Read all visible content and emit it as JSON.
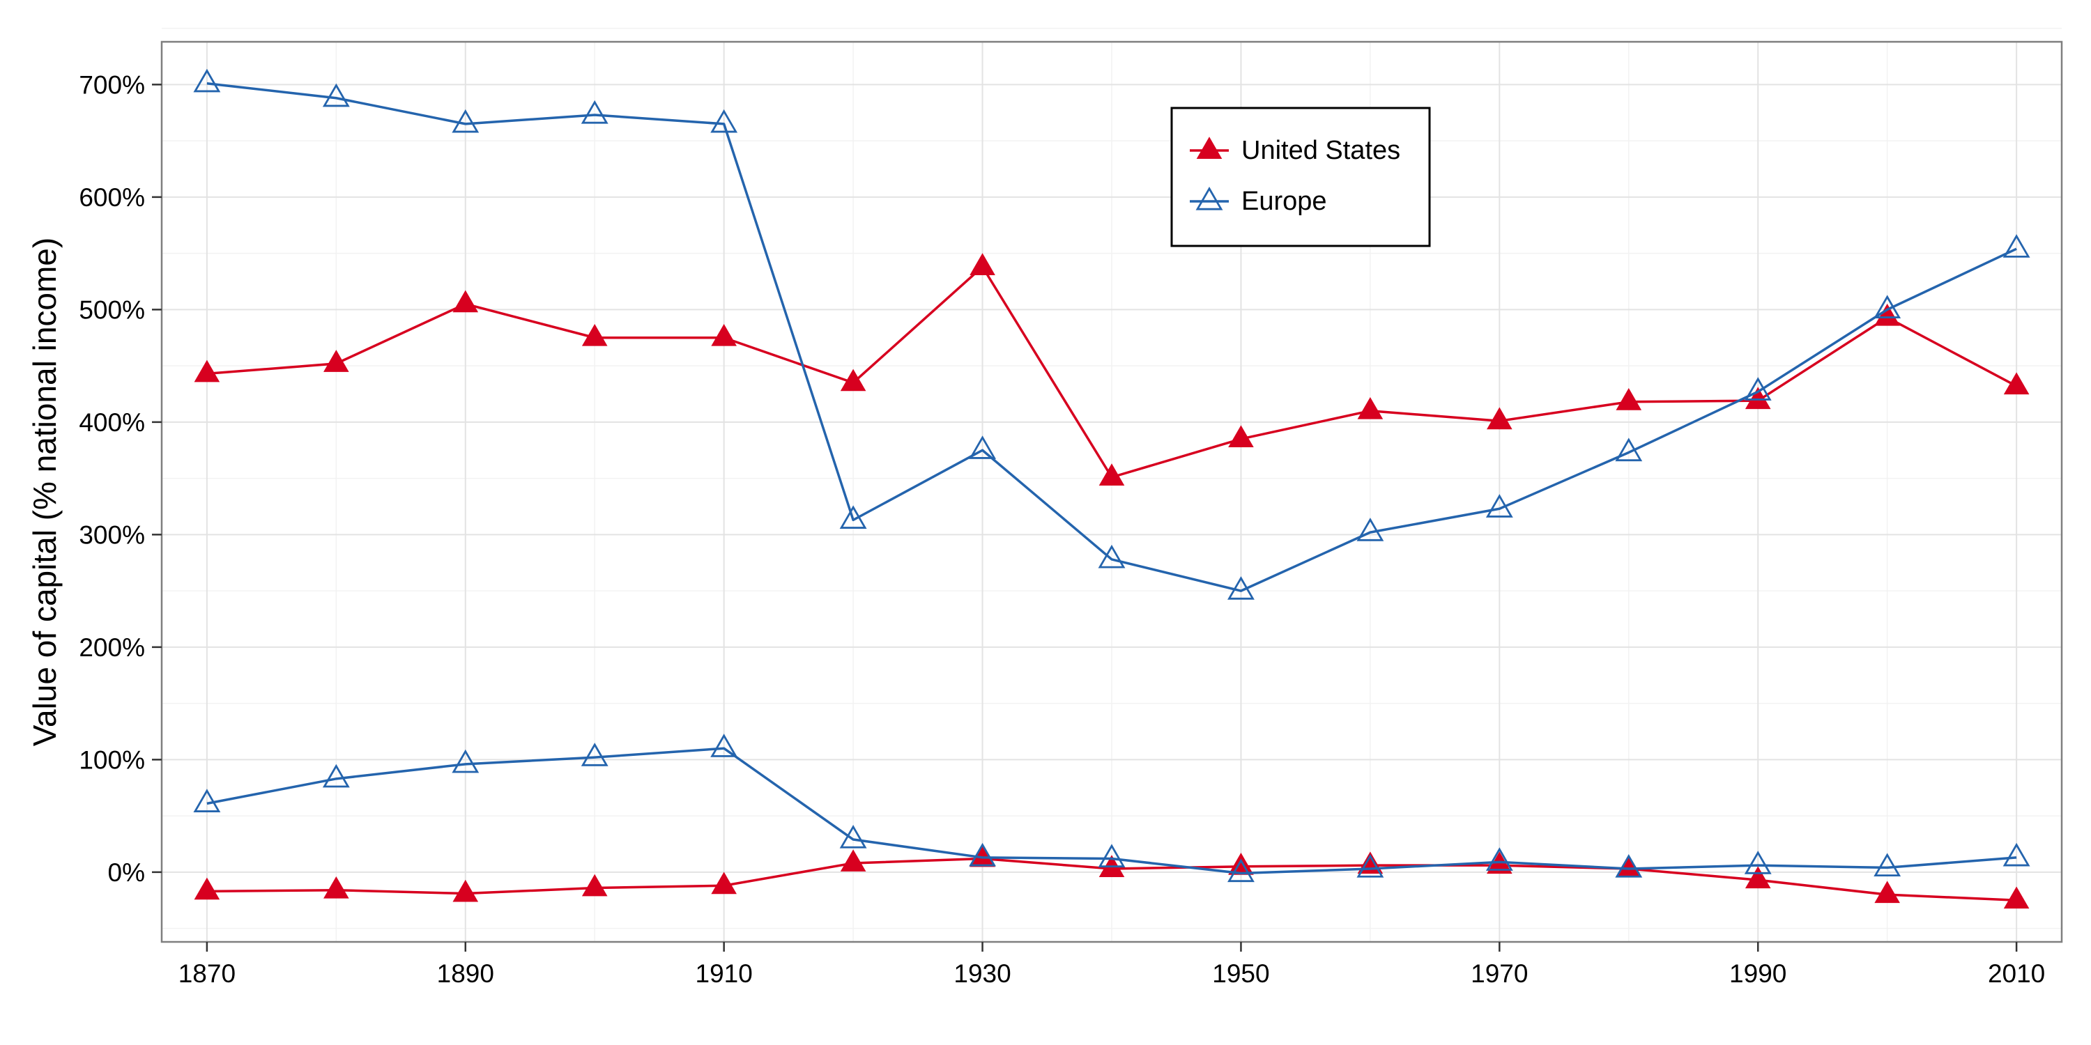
{
  "chart_data": {
    "type": "line",
    "title": "",
    "xlabel": "",
    "ylabel": "Value of capital (% national income)",
    "x": [
      1870,
      1880,
      1890,
      1900,
      1910,
      1920,
      1930,
      1940,
      1950,
      1960,
      1970,
      1980,
      1990,
      2000,
      2010
    ],
    "x_ticks": [
      1870,
      1890,
      1910,
      1930,
      1950,
      1970,
      1990,
      2010
    ],
    "y_ticks": [
      0,
      100,
      200,
      300,
      400,
      500,
      600,
      700
    ],
    "y_tick_labels": [
      "0%",
      "100%",
      "200%",
      "300%",
      "400%",
      "500%",
      "600%",
      "700%"
    ],
    "xlim": [
      1866.5,
      2013.5
    ],
    "ylim": [
      -62,
      738
    ],
    "grid": true,
    "legend_position": "top-center",
    "series": [
      {
        "name": "United States",
        "group": "upper",
        "color": "#d7001f",
        "marker": "filled-triangle",
        "values": [
          443,
          452,
          505,
          475,
          475,
          435,
          538,
          351,
          385,
          410,
          401,
          418,
          419,
          493,
          432
        ]
      },
      {
        "name": "United States",
        "group": "lower",
        "color": "#d7001f",
        "marker": "filled-triangle",
        "values": [
          -17,
          -16,
          -19,
          -14,
          -12,
          8,
          12,
          3,
          5,
          6,
          6,
          3,
          -7,
          -20,
          -25
        ]
      },
      {
        "name": "Europe",
        "group": "upper",
        "color": "#2464ad",
        "marker": "open-triangle",
        "values": [
          701,
          688,
          665,
          673,
          665,
          313,
          375,
          278,
          250,
          302,
          323,
          373,
          427,
          500,
          554
        ]
      },
      {
        "name": "Europe",
        "group": "lower",
        "color": "#2464ad",
        "marker": "open-triangle",
        "values": [
          61,
          83,
          96,
          102,
          110,
          29,
          13,
          12,
          -1,
          3,
          9,
          3,
          6,
          4,
          13
        ]
      }
    ],
    "legend": [
      {
        "label": "United States",
        "color": "#d7001f",
        "marker": "filled-triangle"
      },
      {
        "label": "Europe",
        "color": "#2464ad",
        "marker": "open-triangle"
      }
    ]
  }
}
